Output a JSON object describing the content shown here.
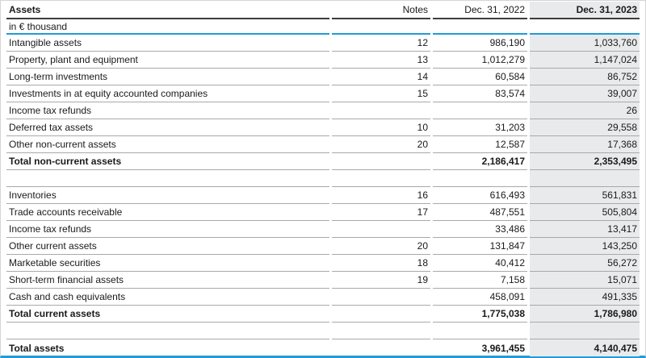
{
  "document": {
    "type": "balance-sheet-assets",
    "header": {
      "assets_label": "Assets",
      "notes_label": "Notes",
      "col_2022_label": "Dec. 31, 2022",
      "col_2023_label": "Dec. 31, 2023"
    },
    "unit_label": "in € thousand",
    "rows": [
      {
        "label": "Intangible assets",
        "note": "12",
        "v2022": "986,190",
        "v2023": "1,033,760",
        "bold": false
      },
      {
        "label": "Property, plant and equipment",
        "note": "13",
        "v2022": "1,012,279",
        "v2023": "1,147,024",
        "bold": false
      },
      {
        "label": "Long-term investments",
        "note": "14",
        "v2022": "60,584",
        "v2023": "86,752",
        "bold": false
      },
      {
        "label": "Investments in at equity accounted companies",
        "note": "15",
        "v2022": "83,574",
        "v2023": "39,007",
        "bold": false
      },
      {
        "label": "Income tax refunds",
        "note": "",
        "v2022": "",
        "v2023": "26",
        "bold": false
      },
      {
        "label": "Deferred tax assets",
        "note": "10",
        "v2022": "31,203",
        "v2023": "29,558",
        "bold": false
      },
      {
        "label": "Other non-current assets",
        "note": "20",
        "v2022": "12,587",
        "v2023": "17,368",
        "bold": false
      },
      {
        "label": "Total non-current assets",
        "note": "",
        "v2022": "2,186,417",
        "v2023": "2,353,495",
        "bold": true
      },
      {
        "spacer": true
      },
      {
        "label": "Inventories",
        "note": "16",
        "v2022": "616,493",
        "v2023": "561,831",
        "bold": false
      },
      {
        "label": "Trade accounts receivable",
        "note": "17",
        "v2022": "487,551",
        "v2023": "505,804",
        "bold": false
      },
      {
        "label": "Income tax refunds",
        "note": "",
        "v2022": "33,486",
        "v2023": "13,417",
        "bold": false
      },
      {
        "label": "Other current assets",
        "note": "20",
        "v2022": "131,847",
        "v2023": "143,250",
        "bold": false
      },
      {
        "label": "Marketable securities",
        "note": "18",
        "v2022": "40,412",
        "v2023": "56,272",
        "bold": false
      },
      {
        "label": "Short-term financial assets",
        "note": "19",
        "v2022": "7,158",
        "v2023": "15,071",
        "bold": false
      },
      {
        "label": "Cash and cash equivalents",
        "note": "",
        "v2022": "458,091",
        "v2023": "491,335",
        "bold": false
      },
      {
        "label": "Total current assets",
        "note": "",
        "v2022": "1,775,038",
        "v2023": "1,786,980",
        "bold": true
      },
      {
        "spacer": true
      },
      {
        "label": "Total assets",
        "note": "",
        "v2022": "3,961,455",
        "v2023": "4,140,475",
        "bold": true,
        "final": true
      }
    ]
  },
  "colors": {
    "blue": "#1f9cd8",
    "shade": "#e9eaeb",
    "header-rule": "#3d3d3d",
    "row-rule": "#a9a9a9",
    "text": "#1a1a1a",
    "frame": "#d4d4d4"
  }
}
